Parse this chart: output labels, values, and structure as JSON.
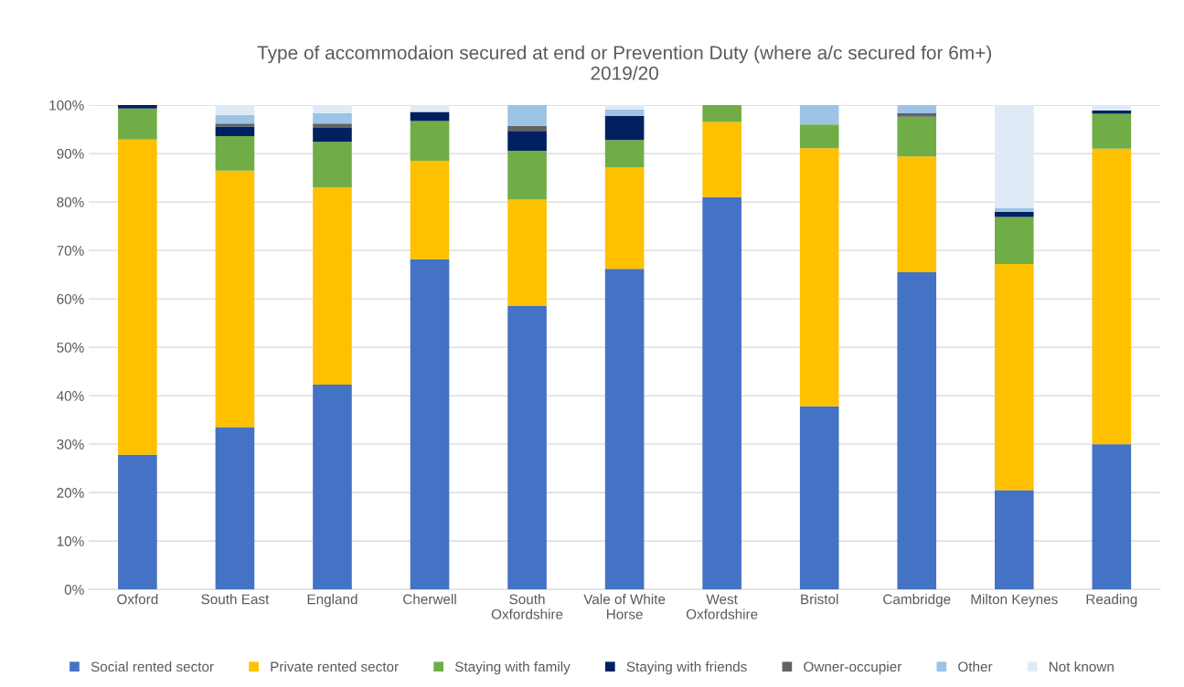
{
  "chart_data": {
    "type": "bar",
    "stacked": true,
    "title": "Type of accommodaion secured at end or Prevention Duty (where a/c secured for 6m+)\n2019/20",
    "categories": [
      "Oxford",
      "South East",
      "England",
      "Cherwell",
      "South\nOxfordshire",
      "Vale of White\nHorse",
      "West\nOxfordshire",
      "Bristol",
      "Cambridge",
      "Milton Keynes",
      "Reading"
    ],
    "series": [
      {
        "name": "Social rented sector",
        "color": "#4472c4",
        "values": [
          27.8,
          33.5,
          42.3,
          68.2,
          58.5,
          66.2,
          81.0,
          37.8,
          65.5,
          20.5,
          30.0
        ]
      },
      {
        "name": "Private rented sector",
        "color": "#ffc000",
        "values": [
          65.1,
          53.0,
          40.7,
          20.3,
          22.0,
          21.0,
          15.5,
          53.3,
          23.9,
          46.7,
          61.0
        ]
      },
      {
        "name": "Staying with family",
        "color": "#70ad47",
        "values": [
          6.4,
          7.1,
          9.4,
          8.2,
          10.1,
          5.6,
          3.5,
          4.9,
          8.2,
          9.7,
          7.2
        ]
      },
      {
        "name": "Staying with friends",
        "color": "#002060",
        "values": [
          0.7,
          2.0,
          2.9,
          1.9,
          4.1,
          5.0,
          0,
          0,
          0,
          1.1,
          0.7
        ]
      },
      {
        "name": "Owner-occupier",
        "color": "#636363",
        "values": [
          0,
          0.6,
          0.9,
          0,
          1.0,
          0,
          0,
          0,
          0.7,
          0,
          0
        ]
      },
      {
        "name": "Other",
        "color": "#9dc3e6",
        "values": [
          0,
          1.8,
          2.1,
          0,
          4.3,
          1.3,
          0,
          4.0,
          1.7,
          0.8,
          0
        ]
      },
      {
        "name": "Not known",
        "color": "#deebf7",
        "values": [
          0,
          2.0,
          1.7,
          1.4,
          0,
          0.9,
          0,
          0,
          0,
          21.1,
          1.1
        ]
      }
    ],
    "ylim": [
      0,
      100
    ],
    "yticks": [
      {
        "value": 0,
        "label": "0%"
      },
      {
        "value": 10,
        "label": "10%"
      },
      {
        "value": 20,
        "label": "20%"
      },
      {
        "value": 30,
        "label": "30%"
      },
      {
        "value": 40,
        "label": "40%"
      },
      {
        "value": 50,
        "label": "50%"
      },
      {
        "value": 60,
        "label": "60%"
      },
      {
        "value": 70,
        "label": "70%"
      },
      {
        "value": 80,
        "label": "80%"
      },
      {
        "value": 90,
        "label": "90%"
      },
      {
        "value": 100,
        "label": "100%"
      }
    ],
    "grid": "y",
    "legend": "bottom"
  }
}
